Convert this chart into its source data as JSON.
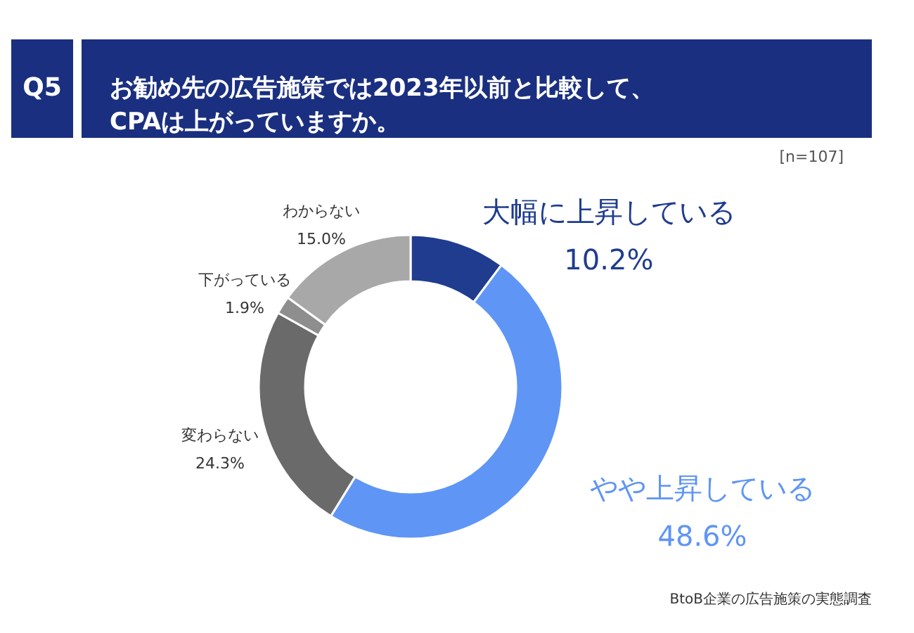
{
  "chart_data": {
    "type": "donut",
    "title": "お勧め先の広告施策では2023年以前と比較して、\nCPAは上がっていますか。",
    "annotations": [
      "Q5",
      "[n=107]",
      "BtoB企業の広告施策の実態調査"
    ],
    "categories": [
      "大幅に上昇している",
      "やや上昇している",
      "変わらない",
      "下がっている",
      "わからない"
    ],
    "values": [
      10.2,
      48.6,
      24.3,
      1.9,
      15.0
    ],
    "colors": [
      "#1f3c8f",
      "#5f95f5",
      "#6a6a6a",
      "#8e8e8e",
      "#a8a8a8"
    ],
    "value_labels": [
      "10.2%",
      "48.6%",
      "24.3%",
      "1.9%",
      "15.0%"
    ]
  }
}
